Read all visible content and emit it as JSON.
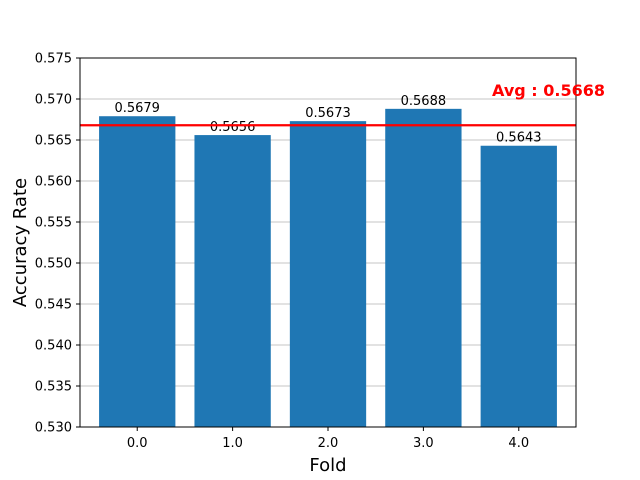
{
  "chart_data": {
    "type": "bar",
    "categories": [
      "0.0",
      "1.0",
      "2.0",
      "3.0",
      "4.0"
    ],
    "values": [
      0.5679,
      0.5656,
      0.5673,
      0.5688,
      0.5643
    ],
    "data_labels": [
      "0.5679",
      "0.5656",
      "0.5673",
      "0.5688",
      "0.5643"
    ],
    "xlabel": "Fold",
    "ylabel": "Accuracy Rate",
    "ylim": [
      0.53,
      0.575
    ],
    "yticks": [
      0.53,
      0.535,
      0.54,
      0.545,
      0.55,
      0.555,
      0.56,
      0.565,
      0.57,
      0.575
    ],
    "ytick_labels": [
      "0.530",
      "0.535",
      "0.540",
      "0.545",
      "0.550",
      "0.555",
      "0.560",
      "0.565",
      "0.570",
      "0.575"
    ],
    "grid": "y",
    "average": {
      "value": 0.5668,
      "label": "Avg : 0.5668",
      "color": "#ff0000"
    },
    "bar_color": "#1f77b4"
  }
}
